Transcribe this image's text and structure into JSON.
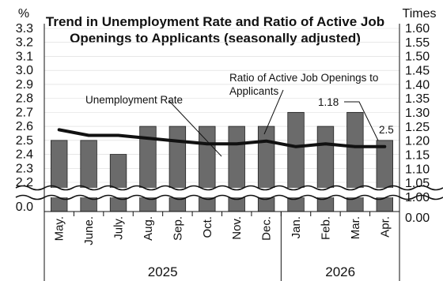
{
  "chart_data": {
    "type": "bar+line",
    "title_line1": "Trend in Unemployment Rate and Ratio of Active Job",
    "title_line2": "Openings to Applicants (seasonally adjusted)",
    "left_unit": "%",
    "right_unit": "Times",
    "categories": [
      "May.",
      "June.",
      "July.",
      "Aug.",
      "Sep.",
      "Oct.",
      "Nov.",
      "Dec.",
      "Jan.",
      "Feb.",
      "Mar.",
      "Apr."
    ],
    "year_groups": [
      {
        "label": "2025",
        "count": 8
      },
      {
        "label": "2026",
        "count": 4
      }
    ],
    "series": [
      {
        "name": "Unemployment Rate",
        "axis": "left",
        "kind": "bar",
        "color": "#6b6b6b",
        "values": [
          2.5,
          2.5,
          2.4,
          2.6,
          2.6,
          2.6,
          2.6,
          2.6,
          2.7,
          2.6,
          2.7,
          2.5
        ]
      },
      {
        "name": "Ratio of Active Job Openings to Applicants",
        "axis": "right",
        "kind": "line",
        "color": "#111111",
        "values": [
          1.24,
          1.22,
          1.22,
          1.21,
          1.2,
          1.19,
          1.19,
          1.2,
          1.18,
          1.19,
          1.18,
          1.18
        ]
      }
    ],
    "left_ticks": [
      "3.3",
      "3.2",
      "3.1",
      "3.0",
      "2.9",
      "2.8",
      "2.7",
      "2.6",
      "2.5",
      "2.4",
      "2.3",
      "2.2",
      "0.0"
    ],
    "right_ticks": [
      "1.60",
      "1.55",
      "1.50",
      "1.45",
      "1.40",
      "1.35",
      "1.30",
      "1.25",
      "1.20",
      "1.15",
      "1.10",
      "1.05",
      "1.00",
      "0.00"
    ],
    "ylim_left": [
      2.2,
      3.3
    ],
    "ylim_right": [
      1.0,
      1.6
    ],
    "axis_break": true,
    "annotations": {
      "unemployment_label": "Unemployment Rate",
      "ratio_label_line1": "Ratio of Active Job Openings to",
      "ratio_label_line2": "Applicants",
      "last_ratio_value": "1.18",
      "last_rate_value": "2.5"
    }
  }
}
